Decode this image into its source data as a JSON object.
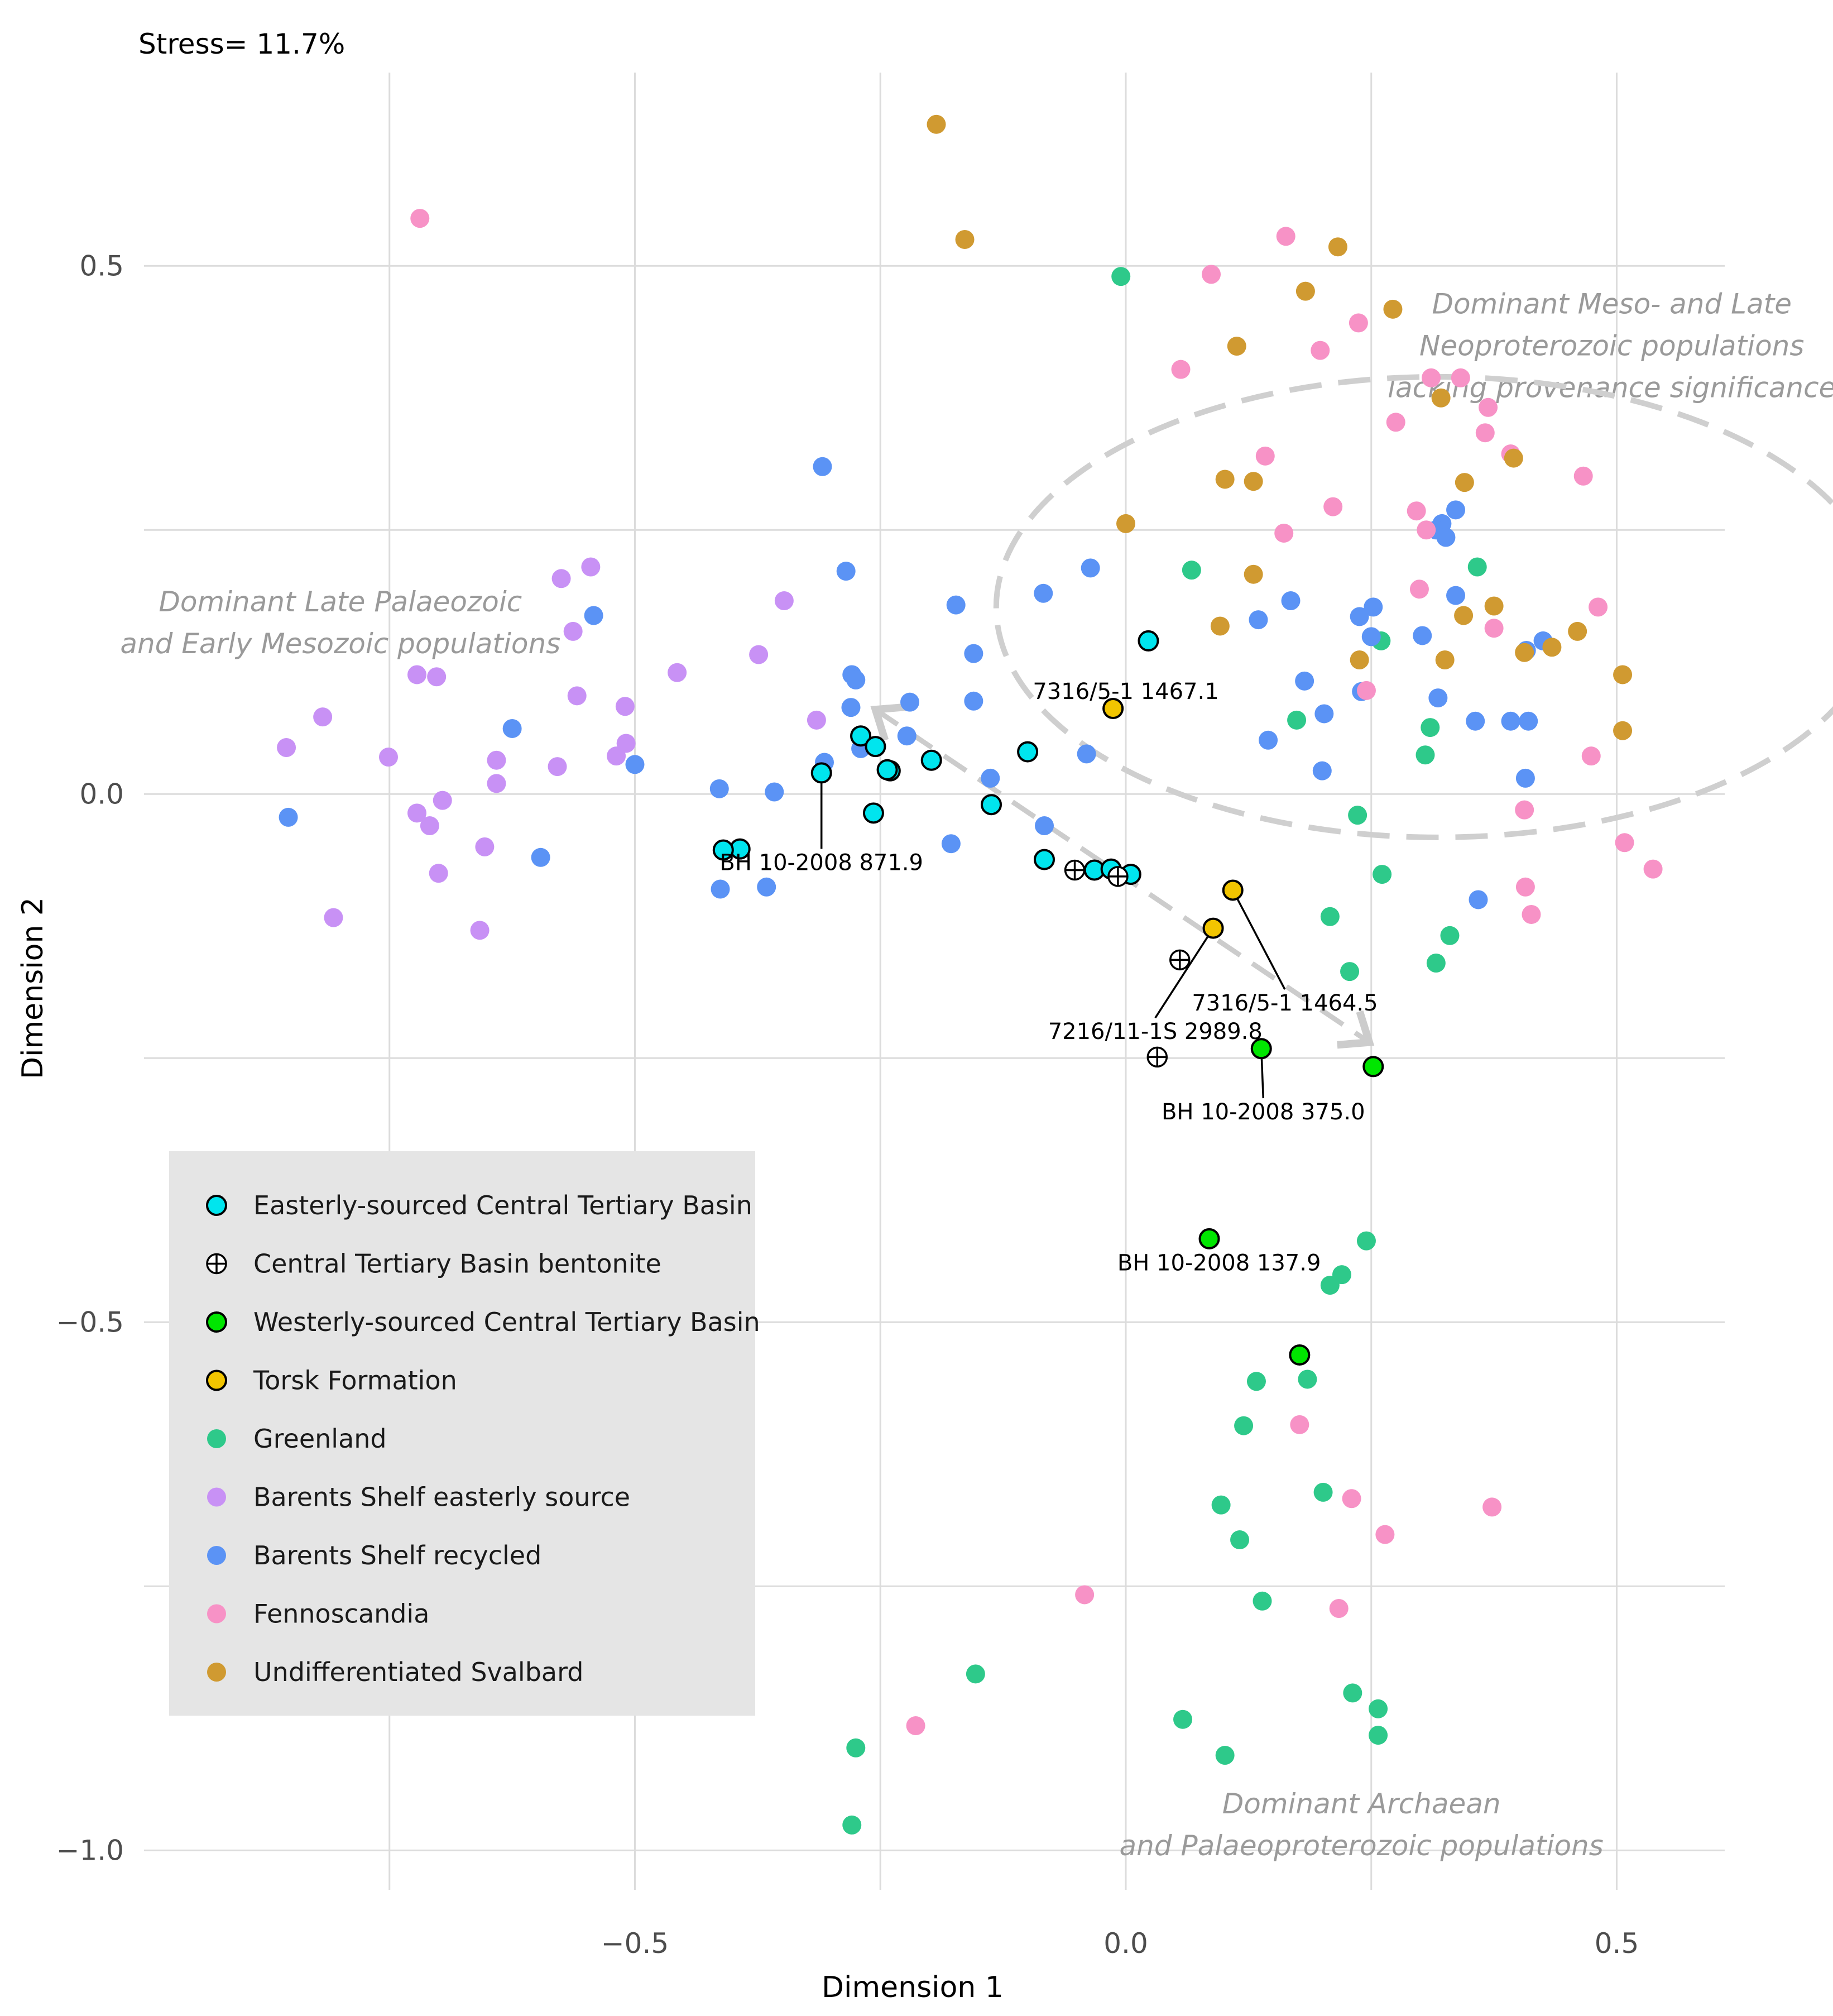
{
  "chart_data": {
    "type": "scatter",
    "stress_label": "Stress= 11.7%",
    "xlabel": "Dimension 1",
    "ylabel": "Dimension 2",
    "xlim": [
      -1.0,
      0.61
    ],
    "ylim": [
      -1.04,
      0.72
    ],
    "x_ticks": [
      {
        "value": -0.5,
        "label": "−0.5"
      },
      {
        "value": 0.0,
        "label": "0.0"
      },
      {
        "value": 0.5,
        "label": "0.5"
      }
    ],
    "y_ticks": [
      {
        "value": 0.5,
        "label": "0.5"
      },
      {
        "value": 0.0,
        "label": "0.0"
      },
      {
        "value": -0.5,
        "label": "−0.5"
      },
      {
        "value": -1.0,
        "label": "−1.0"
      }
    ],
    "x_gridlines": [
      -0.75,
      -0.5,
      -0.25,
      0.0,
      0.25,
      0.5
    ],
    "y_gridlines": [
      0.5,
      0.25,
      0.0,
      -0.25,
      -0.5,
      -0.75,
      -1.0
    ],
    "series": [
      {
        "name": "Easterly-sourced Central Tertiary Basin",
        "color": "#00e5ee",
        "marker": "filled-outlined",
        "points": [
          [
            0.023,
            0.145
          ],
          [
            -0.27,
            0.055
          ],
          [
            -0.255,
            0.045
          ],
          [
            -0.24,
            0.022
          ],
          [
            -0.243,
            0.023
          ],
          [
            -0.198,
            0.032
          ],
          [
            -0.1,
            0.04
          ],
          [
            -0.137,
            -0.01
          ],
          [
            -0.257,
            -0.018
          ],
          [
            -0.31,
            0.02
          ],
          [
            -0.393,
            -0.052
          ],
          [
            -0.41,
            -0.053
          ],
          [
            -0.083,
            -0.062
          ],
          [
            -0.032,
            -0.072
          ],
          [
            -0.015,
            -0.071
          ],
          [
            0.005,
            -0.076
          ]
        ]
      },
      {
        "name": "Central Tertiary Basin bentonite",
        "color": "#000000",
        "marker": "crosshair",
        "points": [
          [
            -0.052,
            -0.072
          ],
          [
            -0.008,
            -0.078
          ],
          [
            0.055,
            -0.157
          ],
          [
            0.032,
            -0.249
          ]
        ]
      },
      {
        "name": "Westerly-sourced Central Tertiary Basin",
        "color": "#00e600",
        "marker": "filled-outlined",
        "points": [
          [
            0.138,
            -0.241
          ],
          [
            0.252,
            -0.258
          ],
          [
            0.085,
            -0.421
          ],
          [
            0.177,
            -0.531
          ]
        ]
      },
      {
        "name": "Torsk Formation",
        "color": "#f2c500",
        "marker": "filled-outlined",
        "points": [
          [
            -0.013,
            0.081
          ],
          [
            0.109,
            -0.091
          ],
          [
            0.089,
            -0.127
          ]
        ]
      },
      {
        "name": "Greenland",
        "color": "#2ec98a",
        "marker": "filled",
        "points": [
          [
            -0.005,
            0.49
          ],
          [
            0.067,
            0.212
          ],
          [
            0.358,
            0.215
          ],
          [
            0.26,
            0.145
          ],
          [
            0.174,
            0.07
          ],
          [
            0.31,
            0.063
          ],
          [
            0.305,
            0.037
          ],
          [
            0.236,
            -0.02
          ],
          [
            0.261,
            -0.076
          ],
          [
            0.208,
            -0.116
          ],
          [
            0.33,
            -0.134
          ],
          [
            0.316,
            -0.16
          ],
          [
            0.228,
            -0.168
          ],
          [
            0.245,
            -0.423
          ],
          [
            0.22,
            -0.455
          ],
          [
            0.208,
            -0.465
          ],
          [
            0.133,
            -0.556
          ],
          [
            0.185,
            -0.554
          ],
          [
            0.12,
            -0.598
          ],
          [
            0.201,
            -0.661
          ],
          [
            0.097,
            -0.673
          ],
          [
            0.116,
            -0.706
          ],
          [
            0.139,
            -0.764
          ],
          [
            -0.153,
            -0.833
          ],
          [
            0.231,
            -0.851
          ],
          [
            0.257,
            -0.866
          ],
          [
            0.058,
            -0.876
          ],
          [
            0.257,
            -0.891
          ],
          [
            0.101,
            -0.91
          ],
          [
            -0.275,
            -0.903
          ],
          [
            -0.279,
            -0.976
          ]
        ]
      },
      {
        "name": "Barents Shelf easterly source",
        "color": "#c891f5",
        "marker": "filled",
        "points": [
          [
            -0.545,
            0.215
          ],
          [
            -0.575,
            0.204
          ],
          [
            -0.348,
            0.183
          ],
          [
            -0.563,
            0.154
          ],
          [
            -0.374,
            0.132
          ],
          [
            -0.457,
            0.115
          ],
          [
            -0.722,
            0.113
          ],
          [
            -0.702,
            0.111
          ],
          [
            -0.559,
            0.093
          ],
          [
            -0.51,
            0.083
          ],
          [
            -0.315,
            0.07
          ],
          [
            -0.818,
            0.073
          ],
          [
            -0.509,
            0.048
          ],
          [
            -0.855,
            0.044
          ],
          [
            -0.751,
            0.035
          ],
          [
            -0.641,
            0.032
          ],
          [
            -0.519,
            0.036
          ],
          [
            -0.579,
            0.026
          ],
          [
            -0.641,
            0.01
          ],
          [
            -0.696,
            -0.006
          ],
          [
            -0.722,
            -0.018
          ],
          [
            -0.709,
            -0.03
          ],
          [
            -0.653,
            -0.05
          ],
          [
            -0.7,
            -0.075
          ],
          [
            -0.807,
            -0.117
          ],
          [
            -0.658,
            -0.129
          ]
        ]
      },
      {
        "name": "Barents Shelf recycled",
        "color": "#5b93f5",
        "marker": "filled",
        "points": [
          [
            -0.309,
            0.31
          ],
          [
            -0.285,
            0.211
          ],
          [
            -0.036,
            0.214
          ],
          [
            -0.084,
            0.19
          ],
          [
            -0.173,
            0.179
          ],
          [
            -0.155,
            0.133
          ],
          [
            -0.542,
            0.169
          ],
          [
            -0.279,
            0.113
          ],
          [
            -0.275,
            0.108
          ],
          [
            -0.22,
            0.087
          ],
          [
            -0.155,
            0.088
          ],
          [
            -0.28,
            0.082
          ],
          [
            -0.625,
            0.062
          ],
          [
            -0.27,
            0.043
          ],
          [
            -0.223,
            0.055
          ],
          [
            -0.307,
            0.03
          ],
          [
            -0.5,
            0.028
          ],
          [
            -0.04,
            0.038
          ],
          [
            -0.138,
            0.015
          ],
          [
            -0.414,
            0.005
          ],
          [
            -0.358,
            0.002
          ],
          [
            -0.853,
            -0.022
          ],
          [
            -0.596,
            -0.06
          ],
          [
            -0.178,
            -0.047
          ],
          [
            -0.083,
            -0.03
          ],
          [
            -0.413,
            -0.09
          ],
          [
            -0.366,
            -0.088
          ],
          [
            0.336,
            0.269
          ],
          [
            0.322,
            0.256
          ],
          [
            0.316,
            0.25
          ],
          [
            0.326,
            0.243
          ],
          [
            0.336,
            0.188
          ],
          [
            0.168,
            0.183
          ],
          [
            0.252,
            0.177
          ],
          [
            0.238,
            0.168
          ],
          [
            0.302,
            0.15
          ],
          [
            0.25,
            0.149
          ],
          [
            0.135,
            0.165
          ],
          [
            0.182,
            0.107
          ],
          [
            0.408,
            0.136
          ],
          [
            0.425,
            0.145
          ],
          [
            0.202,
            0.076
          ],
          [
            0.356,
            0.069
          ],
          [
            0.392,
            0.069
          ],
          [
            0.24,
            0.097
          ],
          [
            0.145,
            0.051
          ],
          [
            0.407,
            0.015
          ],
          [
            0.41,
            0.069
          ],
          [
            0.2,
            0.022
          ],
          [
            0.318,
            0.091
          ],
          [
            0.359,
            -0.1
          ]
        ]
      },
      {
        "name": "Fennoscandia",
        "color": "#f792c6",
        "marker": "filled",
        "points": [
          [
            -0.719,
            0.545
          ],
          [
            0.163,
            0.528
          ],
          [
            0.087,
            0.492
          ],
          [
            0.237,
            0.446
          ],
          [
            0.198,
            0.42
          ],
          [
            0.056,
            0.402
          ],
          [
            0.311,
            0.394
          ],
          [
            0.369,
            0.366
          ],
          [
            0.275,
            0.352
          ],
          [
            0.366,
            0.342
          ],
          [
            0.341,
            0.394
          ],
          [
            0.392,
            0.322
          ],
          [
            0.142,
            0.32
          ],
          [
            0.466,
            0.301
          ],
          [
            0.211,
            0.272
          ],
          [
            0.296,
            0.268
          ],
          [
            0.306,
            0.25
          ],
          [
            0.161,
            0.247
          ],
          [
            0.375,
            0.157
          ],
          [
            0.481,
            0.177
          ],
          [
            0.299,
            0.194
          ],
          [
            0.245,
            0.098
          ],
          [
            0.474,
            0.036
          ],
          [
            0.406,
            -0.015
          ],
          [
            0.508,
            -0.046
          ],
          [
            0.537,
            -0.071
          ],
          [
            0.407,
            -0.088
          ],
          [
            0.413,
            -0.114
          ],
          [
            0.177,
            -0.597
          ],
          [
            0.23,
            -0.667
          ],
          [
            0.264,
            -0.701
          ],
          [
            0.373,
            -0.675
          ],
          [
            0.217,
            -0.771
          ],
          [
            -0.042,
            -0.758
          ],
          [
            -0.214,
            -0.882
          ]
        ]
      },
      {
        "name": "Undifferentiated Svalbard",
        "color": "#d09a31",
        "marker": "filled",
        "points": [
          [
            -0.193,
            0.634
          ],
          [
            -0.164,
            0.525
          ],
          [
            0.216,
            0.518
          ],
          [
            0.183,
            0.476
          ],
          [
            0.272,
            0.459
          ],
          [
            0.113,
            0.424
          ],
          [
            0.321,
            0.375
          ],
          [
            0.395,
            0.318
          ],
          [
            0.345,
            0.295
          ],
          [
            0.101,
            0.298
          ],
          [
            0.13,
            0.296
          ],
          [
            0.0,
            0.256
          ],
          [
            0.13,
            0.208
          ],
          [
            0.375,
            0.178
          ],
          [
            0.344,
            0.169
          ],
          [
            0.096,
            0.159
          ],
          [
            0.46,
            0.154
          ],
          [
            0.406,
            0.134
          ],
          [
            0.434,
            0.139
          ],
          [
            0.238,
            0.127
          ],
          [
            0.325,
            0.127
          ],
          [
            0.506,
            0.113
          ],
          [
            0.506,
            0.06
          ]
        ]
      }
    ],
    "point_labels": [
      {
        "text": "7316/5-1 1467.1",
        "x": 0.0,
        "y": 0.09,
        "anchor_x": 0.0,
        "anchor_y": 0.09
      },
      {
        "text": "BH 10-2008 871.9",
        "x": -0.31,
        "y": -0.072,
        "anchor_x": -0.31,
        "anchor_y": 0.02
      },
      {
        "text": "7316/5-1 1464.5",
        "x": 0.162,
        "y": -0.205,
        "anchor_x": 0.109,
        "anchor_y": -0.091
      },
      {
        "text": "7216/11-1S 2989.8",
        "x": 0.03,
        "y": -0.232,
        "anchor_x": 0.089,
        "anchor_y": -0.127
      },
      {
        "text": "BH 10-2008 375.0",
        "x": 0.14,
        "y": -0.308,
        "anchor_x": 0.138,
        "anchor_y": -0.241
      },
      {
        "text": "BH 10-2008 137.9",
        "x": 0.095,
        "y": -0.451,
        "anchor_x": 0.085,
        "anchor_y": -0.421
      }
    ],
    "annotations": [
      {
        "lines": [
          "Dominant Late Palaeozoic",
          "and Early Mesozoic populations"
        ],
        "x": -0.8,
        "y": 0.173
      },
      {
        "lines": [
          "Dominant Meso- and Late",
          "Neoproterozoic populations",
          "lacking provenance significance"
        ],
        "x": 0.495,
        "y": 0.455
      },
      {
        "lines": [
          "Dominant Archaean",
          "and Palaeoproterozoic populations"
        ],
        "x": 0.24,
        "y": -0.965
      }
    ],
    "ellipse": {
      "cx": 0.318,
      "cy": 0.177,
      "rx": 0.45,
      "ry": 0.218
    },
    "arrow": {
      "from": [
        -0.255,
        0.08
      ],
      "to": [
        0.248,
        -0.235
      ]
    },
    "legend_position": "bottom-left"
  }
}
